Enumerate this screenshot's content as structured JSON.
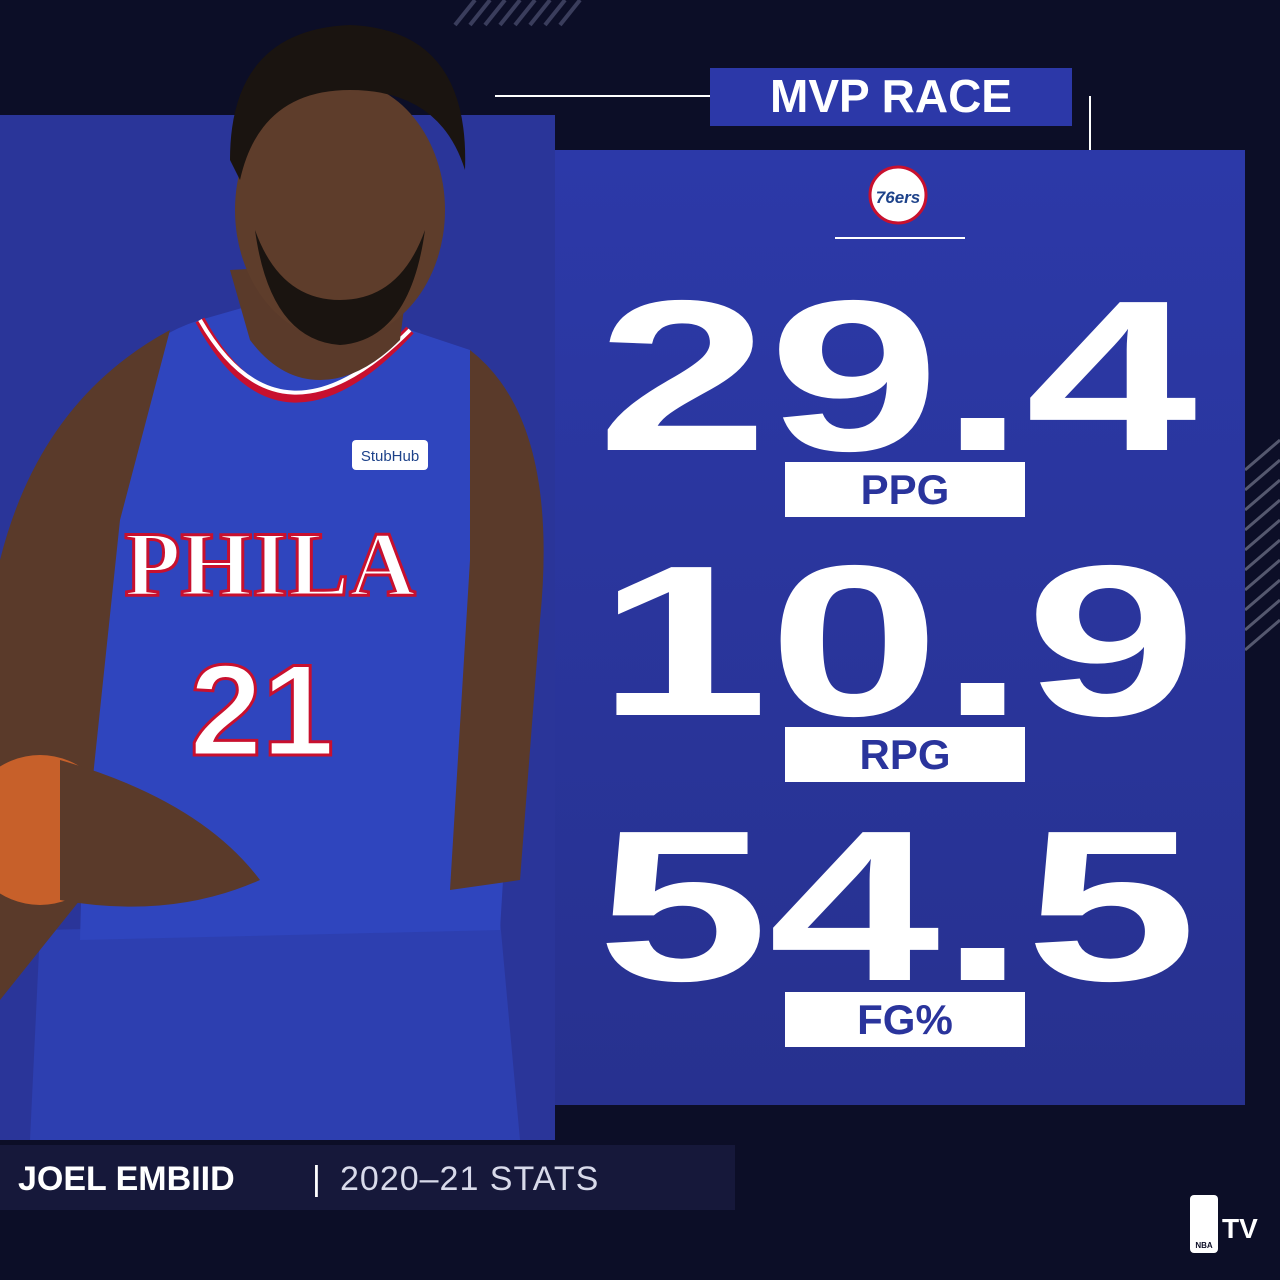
{
  "header": {
    "title": "MVP RACE",
    "team_logo": "76ers"
  },
  "stats": [
    {
      "value": "29.4",
      "label": "PPG"
    },
    {
      "value": "10.9",
      "label": "RPG"
    },
    {
      "value": "54.5",
      "label": "FG%"
    }
  ],
  "player": {
    "jersey_text": "PHILA",
    "jersey_number": "21",
    "sponsor": "StubHub"
  },
  "footer": {
    "name": "JOEL EMBIID",
    "separator": "|",
    "subtitle": "2020–21 STATS"
  },
  "brand": {
    "league": "NBA",
    "network": "TV"
  }
}
